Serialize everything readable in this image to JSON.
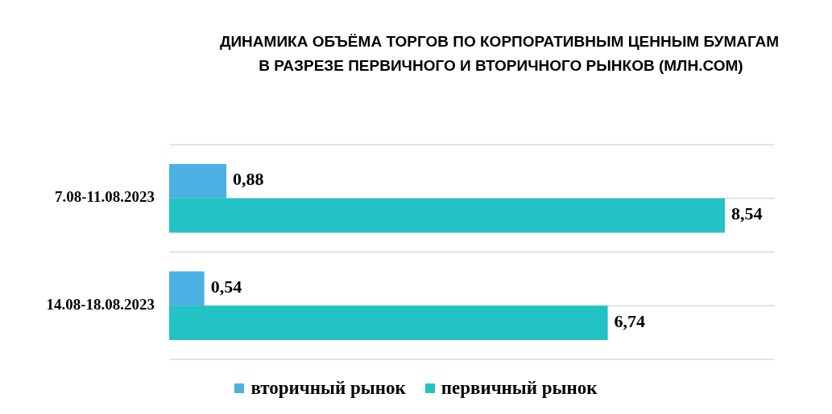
{
  "chart_data": {
    "type": "bar",
    "orientation": "horizontal",
    "title": "ДИНАМИКА ОБЪЁМА ТОРГОВ ПО КОРПОРАТИВНЫМ ЦЕННЫМ БУМАГАМ",
    "subtitle": "В РАЗРЕЗЕ ПЕРВИЧНОГО И ВТОРИЧНОГО РЫНКОВ (МЛН.СОМ)",
    "categories": [
      "7.08-11.08.2023",
      "14.08-18.08.2023"
    ],
    "series": [
      {
        "name": "вторичный рынок",
        "color": "#4bb1e3",
        "values": [
          0.88,
          0.54
        ],
        "value_labels": [
          "0,88",
          "0,54"
        ]
      },
      {
        "name": "первичный рынок",
        "color": "#23c2c4",
        "values": [
          8.54,
          6.74
        ],
        "value_labels": [
          "8,54",
          "6,74"
        ]
      }
    ],
    "grid": "y",
    "legend": "bottom"
  }
}
